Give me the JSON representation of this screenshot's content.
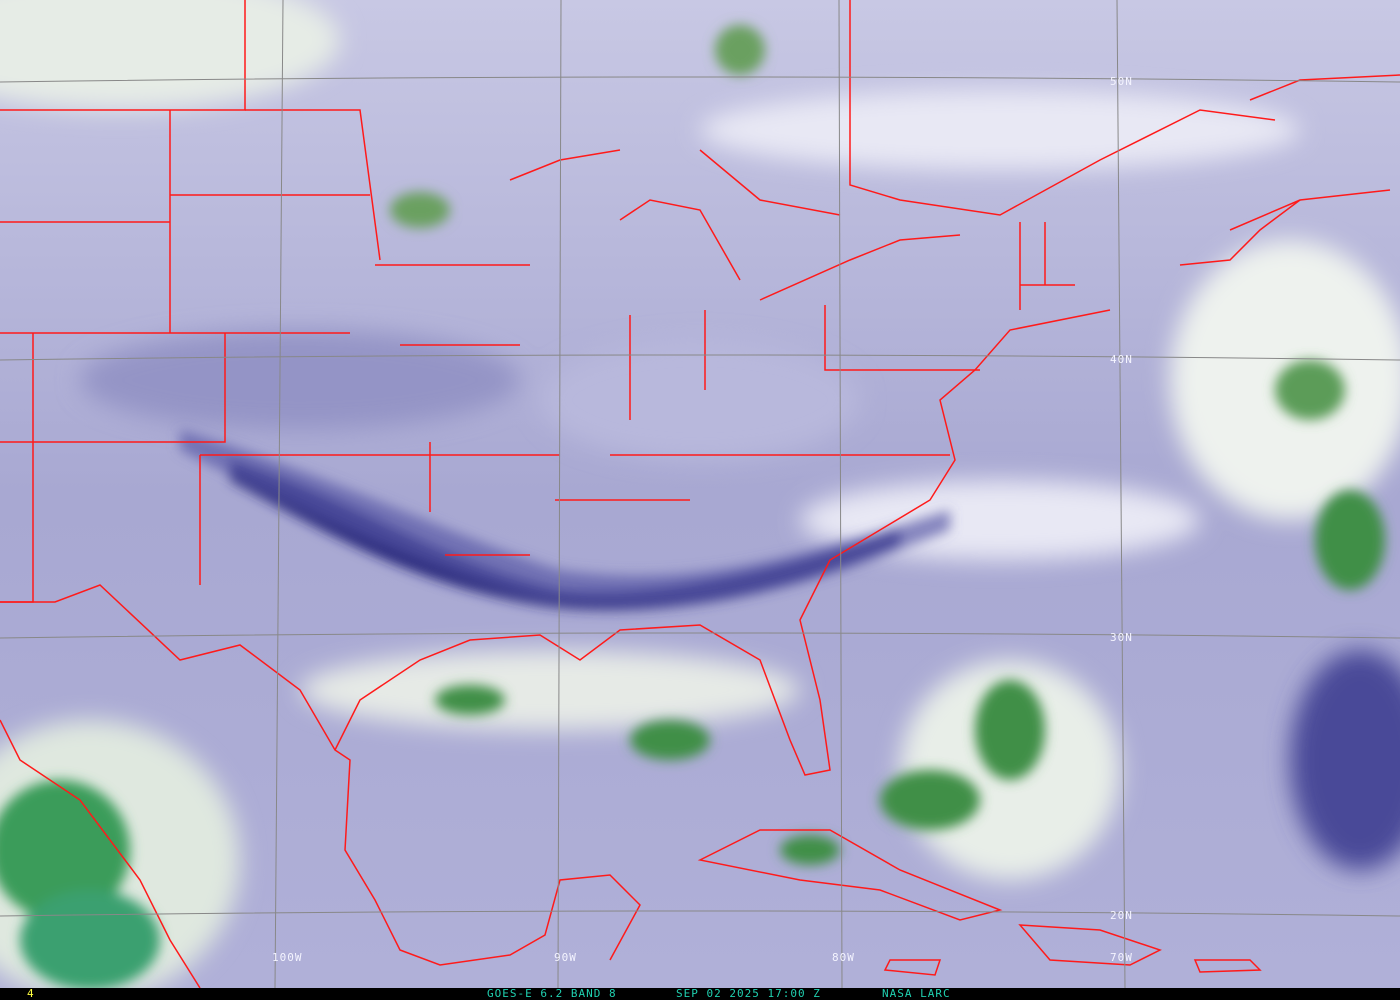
{
  "image": {
    "satellite": "GOES-E",
    "product": "6.2 BAND 8",
    "footer_left": "4",
    "footer_title": "GOES-E 6.2 BAND 8",
    "footer_datetime": "SEP 02 2025 17:00 Z",
    "footer_credit": "NASA LARC"
  },
  "grid_labels": {
    "lat": [
      "50N",
      "40N",
      "30N",
      "20N"
    ],
    "lon": [
      "100W",
      "90W",
      "80W",
      "70W"
    ]
  },
  "colors": {
    "boundaries": "#ff1a1a",
    "grid": "#888888",
    "moist": "#2f8f3f",
    "dry": "#1a1a70",
    "footer_text": "#20d0b0",
    "footer_number": "#ffff40"
  }
}
